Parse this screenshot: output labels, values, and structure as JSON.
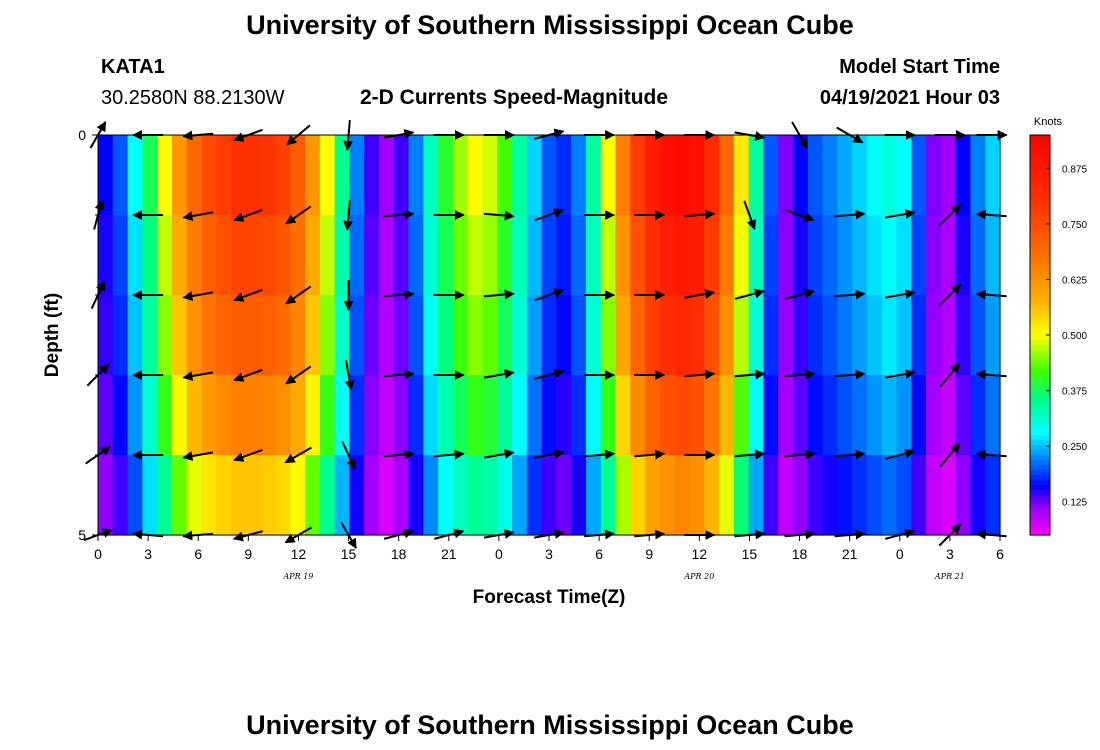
{
  "header": {
    "title": "University of Southern Mississippi Ocean Cube",
    "station_id": "KATA1",
    "station_coords": "30.2580N  88.2130W",
    "plot_title": "2-D Currents Speed-Magnitude",
    "model_start_label": "Model Start Time",
    "model_start_value": "04/19/2021 Hour 03"
  },
  "footer": {
    "title": "University of Southern Mississippi Ocean Cube"
  },
  "colorbar": {
    "unit": "Knots",
    "ticks": [
      "0.875",
      "0.750",
      "0.625",
      "0.500",
      "0.375",
      "0.250",
      "0.125"
    ],
    "tick_values": [
      0.875,
      0.75,
      0.625,
      0.5,
      0.375,
      0.25,
      0.125
    ],
    "range": [
      0.05,
      0.95
    ],
    "stops": [
      {
        "v": 0.05,
        "c": "#ff00ff"
      },
      {
        "v": 0.12,
        "c": "#8000ff"
      },
      {
        "v": 0.16,
        "c": "#0000ff"
      },
      {
        "v": 0.22,
        "c": "#0080ff"
      },
      {
        "v": 0.28,
        "c": "#00ffff"
      },
      {
        "v": 0.36,
        "c": "#00ff80"
      },
      {
        "v": 0.42,
        "c": "#40ff00"
      },
      {
        "v": 0.5,
        "c": "#ffff00"
      },
      {
        "v": 0.58,
        "c": "#ffb000"
      },
      {
        "v": 0.68,
        "c": "#ff7000"
      },
      {
        "v": 0.8,
        "c": "#ff3000"
      },
      {
        "v": 0.95,
        "c": "#ff0000"
      }
    ]
  },
  "chart_data": {
    "type": "heatmap",
    "title": "2-D Currents Speed-Magnitude",
    "xlabel": "Forecast Time(Z)",
    "ylabel": "Depth (ft)",
    "x_hours": [
      0,
      3,
      6,
      9,
      12,
      15,
      18,
      21,
      24,
      27,
      30,
      33,
      36,
      39,
      42,
      45,
      48,
      51,
      54
    ],
    "x_tick_labels": [
      "0",
      "3",
      "6",
      "9",
      "12",
      "15",
      "18",
      "21",
      "0",
      "3",
      "6",
      "9",
      "12",
      "15",
      "18",
      "21",
      "0",
      "3",
      "6"
    ],
    "date_labels": [
      {
        "label": "APR  19",
        "hour": 12
      },
      {
        "label": "APR  20",
        "hour": 36
      },
      {
        "label": "APR  21",
        "hour": 51
      }
    ],
    "ylim": [
      0,
      5
    ],
    "y_tick_labels": [
      "0",
      "5"
    ],
    "depth_layers": 5,
    "layer_speed_scale": [
      1.0,
      0.95,
      0.9,
      0.82,
      0.7
    ],
    "surface_speed_by_hour": [
      0.16,
      0.2,
      0.28,
      0.38,
      0.5,
      0.62,
      0.7,
      0.75,
      0.78,
      0.8,
      0.8,
      0.79,
      0.77,
      0.72,
      0.62,
      0.5,
      0.35,
      0.22,
      0.14,
      0.1,
      0.14,
      0.22,
      0.32,
      0.4,
      0.46,
      0.5,
      0.48,
      0.42,
      0.34,
      0.26,
      0.2,
      0.18,
      0.22,
      0.34,
      0.5,
      0.66,
      0.78,
      0.86,
      0.9,
      0.92,
      0.9,
      0.82,
      0.7,
      0.52,
      0.34,
      0.2,
      0.12,
      0.16,
      0.2,
      0.22,
      0.24,
      0.26,
      0.28,
      0.3,
      0.28,
      0.2,
      0.12,
      0.1,
      0.16,
      0.22,
      0.26
    ],
    "vector_hours": [
      0,
      3,
      6,
      9,
      12,
      15,
      18,
      21,
      24,
      27,
      30,
      33,
      36,
      39,
      42,
      45,
      48,
      51,
      53.5
    ],
    "vector_dir_deg": [
      [
        60,
        180,
        185,
        200,
        220,
        265,
        10,
        0,
        0,
        15,
        0,
        0,
        0,
        350,
        300,
        330,
        0,
        0,
        0
      ],
      [
        75,
        180,
        190,
        200,
        215,
        265,
        5,
        0,
        355,
        20,
        0,
        0,
        5,
        290,
        340,
        5,
        10,
        45,
        175
      ],
      [
        65,
        180,
        190,
        200,
        215,
        270,
        5,
        0,
        5,
        20,
        0,
        0,
        10,
        15,
        15,
        5,
        10,
        45,
        175
      ],
      [
        45,
        180,
        190,
        200,
        215,
        280,
        5,
        0,
        10,
        15,
        0,
        0,
        5,
        5,
        5,
        5,
        10,
        50,
        175
      ],
      [
        35,
        180,
        190,
        200,
        210,
        295,
        5,
        5,
        10,
        10,
        5,
        5,
        0,
        5,
        5,
        5,
        15,
        50,
        175
      ],
      [
        20,
        175,
        185,
        195,
        210,
        300,
        15,
        15,
        10,
        10,
        5,
        5,
        0,
        5,
        5,
        5,
        15,
        45,
        175
      ]
    ]
  }
}
